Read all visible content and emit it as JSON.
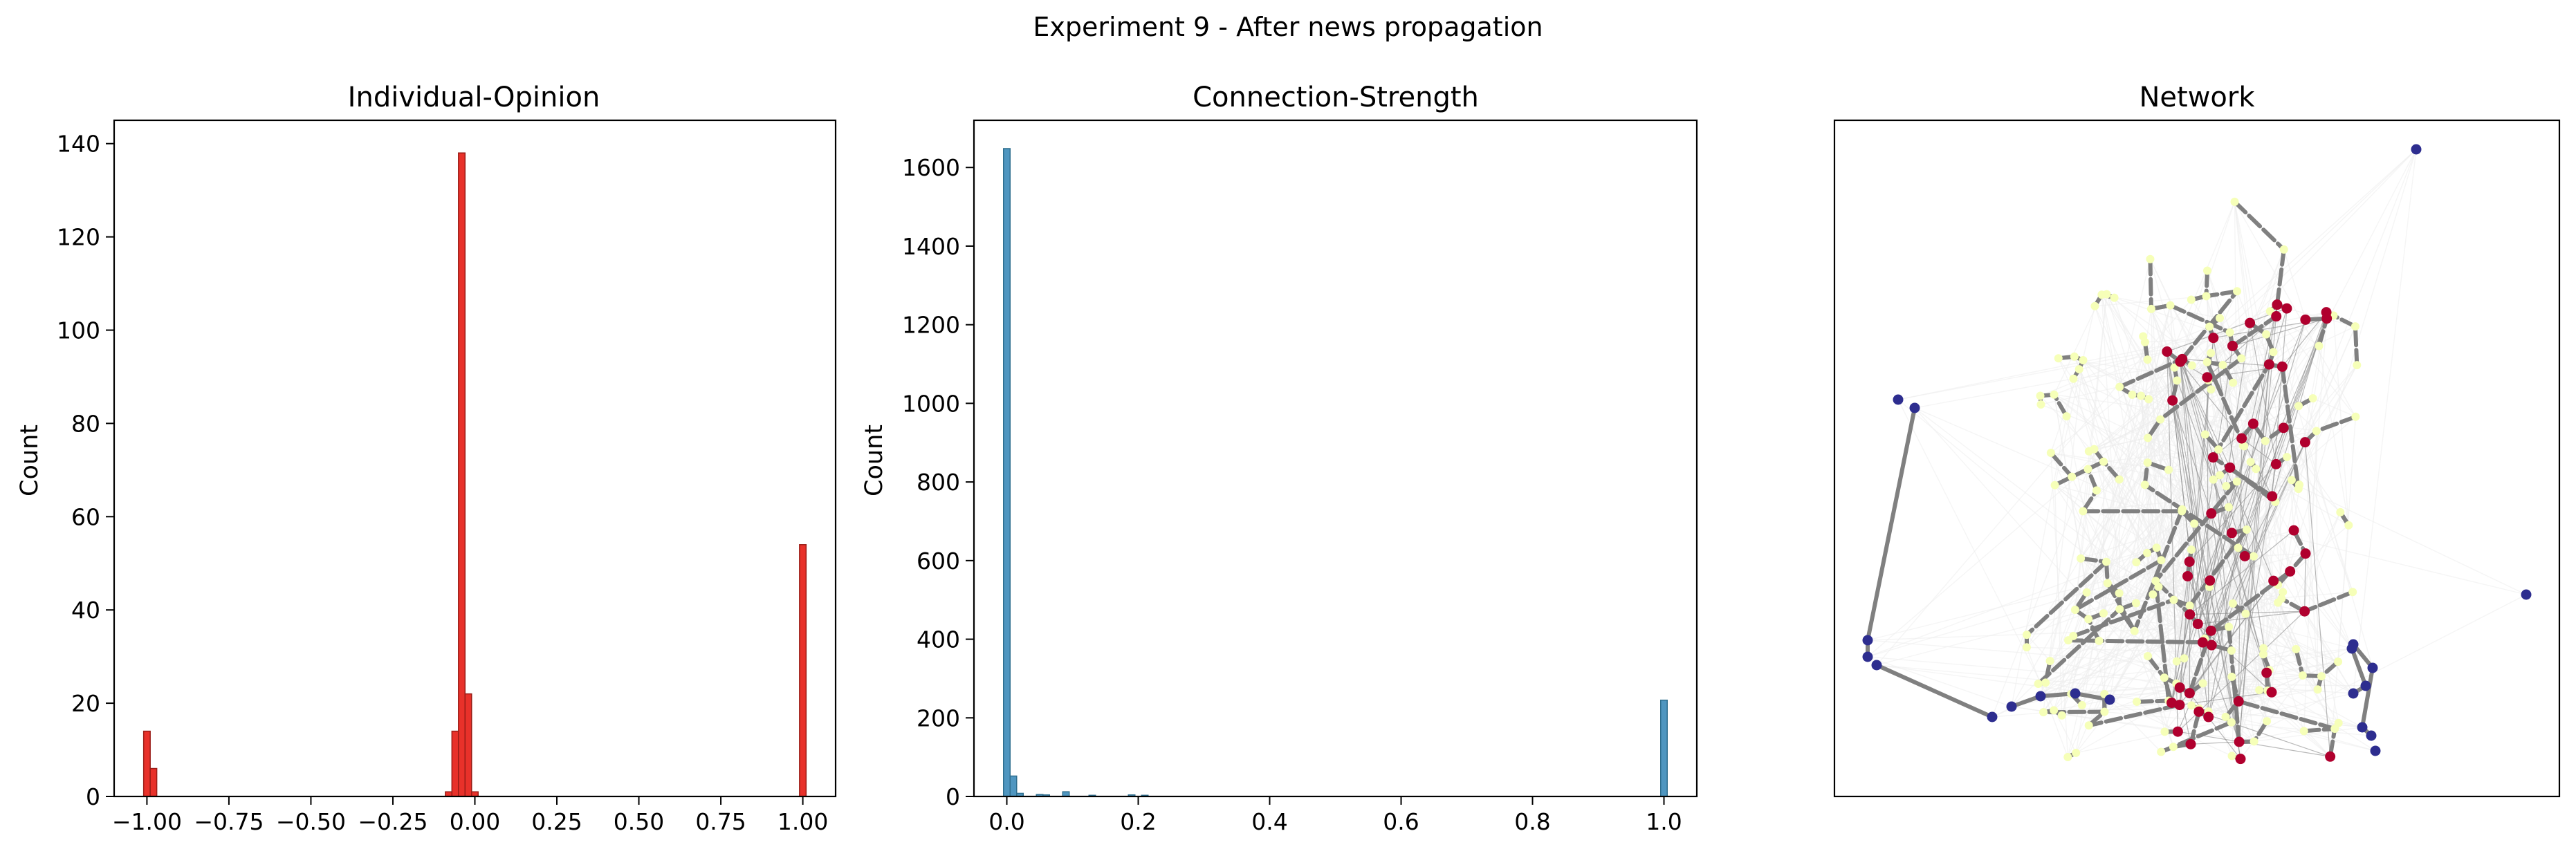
{
  "suptitle": "Experiment 9 - After news propagation",
  "colors": {
    "opinion_bar": "#e8312a",
    "opinion_edge": "#9a1c16",
    "strength_bar": "#4f96c0",
    "strength_edge": "#2f6f8f",
    "node_negative": "#2d2d8f",
    "node_neutral": "#f6ffb8",
    "node_positive": "#b0002e",
    "edge_strong": "#808080",
    "edge_weak": "#ececec"
  },
  "chart_data": [
    {
      "type": "bar",
      "title": "Individual-Opinion",
      "xlabel": "",
      "ylabel": "Count",
      "xlim": [
        -1.1,
        1.1
      ],
      "ylim": [
        0,
        145
      ],
      "xticks": [
        "−1.00",
        "−0.75",
        "−0.50",
        "−0.25",
        "0.00",
        "0.25",
        "0.50",
        "0.75",
        "1.00"
      ],
      "xtick_values": [
        -1.0,
        -0.75,
        -0.5,
        -0.25,
        0.0,
        0.25,
        0.5,
        0.75,
        1.0
      ],
      "yticks": [
        "0",
        "20",
        "40",
        "60",
        "80",
        "100",
        "120",
        "140"
      ],
      "ytick_values": [
        0,
        20,
        40,
        60,
        80,
        100,
        120,
        140
      ],
      "bin_width": 0.02,
      "bars": [
        {
          "x": -1.0,
          "y": 14
        },
        {
          "x": -0.98,
          "y": 6
        },
        {
          "x": -0.08,
          "y": 1
        },
        {
          "x": -0.06,
          "y": 14
        },
        {
          "x": -0.04,
          "y": 138
        },
        {
          "x": -0.02,
          "y": 22
        },
        {
          "x": 0.0,
          "y": 1
        },
        {
          "x": 1.0,
          "y": 54
        }
      ]
    },
    {
      "type": "bar",
      "title": "Connection-Strength",
      "xlabel": "",
      "ylabel": "Count",
      "xlim": [
        -0.05,
        1.05
      ],
      "ylim": [
        0,
        1720
      ],
      "xticks": [
        "0.0",
        "0.2",
        "0.4",
        "0.6",
        "0.8",
        "1.0"
      ],
      "xtick_values": [
        0.0,
        0.2,
        0.4,
        0.6,
        0.8,
        1.0
      ],
      "yticks": [
        "0",
        "200",
        "400",
        "600",
        "800",
        "1000",
        "1200",
        "1400",
        "1600"
      ],
      "ytick_values": [
        0,
        200,
        400,
        600,
        800,
        1000,
        1200,
        1400,
        1600
      ],
      "bin_width": 0.01,
      "bars": [
        {
          "x": 0.0,
          "y": 1648
        },
        {
          "x": 0.01,
          "y": 52
        },
        {
          "x": 0.02,
          "y": 8
        },
        {
          "x": 0.05,
          "y": 5
        },
        {
          "x": 0.06,
          "y": 4
        },
        {
          "x": 0.09,
          "y": 12
        },
        {
          "x": 0.13,
          "y": 3
        },
        {
          "x": 0.19,
          "y": 4
        },
        {
          "x": 0.21,
          "y": 3
        },
        {
          "x": 1.0,
          "y": 245
        }
      ]
    },
    {
      "type": "network",
      "title": "Network",
      "node_groups": [
        {
          "opinion": -1,
          "count": 20
        },
        {
          "opinion": 0,
          "count": 176
        },
        {
          "opinion": 1,
          "count": 54
        }
      ]
    }
  ]
}
